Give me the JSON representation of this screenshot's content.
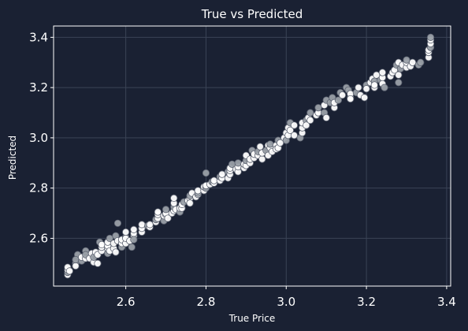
{
  "chart_data": {
    "type": "scatter",
    "title": "True vs Predicted",
    "xlabel": "True Price",
    "ylabel": "Predicted",
    "xlim": [
      2.42,
      3.41
    ],
    "ylim": [
      2.41,
      3.445
    ],
    "xticks": [
      2.6,
      2.8,
      3.0,
      3.2,
      3.4
    ],
    "yticks": [
      2.6,
      2.8,
      3.0,
      3.2,
      3.4
    ],
    "xtick_labels": [
      "2.6",
      "2.8",
      "3.0",
      "3.2",
      "3.4"
    ],
    "ytick_labels": [
      "2.6",
      "2.8",
      "3.0",
      "3.2",
      "3.4"
    ],
    "grid": true,
    "legend": false,
    "colors": {
      "background": "#1a2133",
      "axes_face": "#1a2133",
      "axes_edge": "#ffffff",
      "grid": "#3a4356",
      "point_fill": "#ffffff",
      "point_fill_faint": "#9aa0a8",
      "point_edge": "#5c6270"
    },
    "points": [
      [
        2.455,
        2.455
      ],
      [
        2.455,
        2.465
      ],
      [
        2.455,
        2.475
      ],
      [
        2.455,
        2.485
      ],
      [
        2.46,
        2.47
      ],
      [
        2.475,
        2.5
      ],
      [
        2.475,
        2.49
      ],
      [
        2.48,
        2.535
      ],
      [
        2.475,
        2.515
      ],
      [
        2.49,
        2.51
      ],
      [
        2.49,
        2.525
      ],
      [
        2.5,
        2.52
      ],
      [
        2.5,
        2.55
      ],
      [
        2.5,
        2.535
      ],
      [
        2.51,
        2.52
      ],
      [
        2.515,
        2.54
      ],
      [
        2.52,
        2.505
      ],
      [
        2.52,
        2.525
      ],
      [
        2.525,
        2.545
      ],
      [
        2.53,
        2.5
      ],
      [
        2.53,
        2.535
      ],
      [
        2.535,
        2.585
      ],
      [
        2.54,
        2.55
      ],
      [
        2.54,
        2.565
      ],
      [
        2.54,
        2.575
      ],
      [
        2.555,
        2.54
      ],
      [
        2.555,
        2.56
      ],
      [
        2.555,
        2.57
      ],
      [
        2.555,
        2.585
      ],
      [
        2.56,
        2.6
      ],
      [
        2.56,
        2.55
      ],
      [
        2.57,
        2.56
      ],
      [
        2.57,
        2.58
      ],
      [
        2.575,
        2.61
      ],
      [
        2.575,
        2.545
      ],
      [
        2.58,
        2.59
      ],
      [
        2.58,
        2.66
      ],
      [
        2.59,
        2.565
      ],
      [
        2.59,
        2.58
      ],
      [
        2.59,
        2.595
      ],
      [
        2.6,
        2.58
      ],
      [
        2.6,
        2.605
      ],
      [
        2.6,
        2.6
      ],
      [
        2.6,
        2.625
      ],
      [
        2.61,
        2.59
      ],
      [
        2.615,
        2.565
      ],
      [
        2.62,
        2.61
      ],
      [
        2.62,
        2.62
      ],
      [
        2.62,
        2.635
      ],
      [
        2.62,
        2.595
      ],
      [
        2.64,
        2.625
      ],
      [
        2.64,
        2.64
      ],
      [
        2.64,
        2.655
      ],
      [
        2.655,
        2.65
      ],
      [
        2.66,
        2.645
      ],
      [
        2.66,
        2.655
      ],
      [
        2.675,
        2.665
      ],
      [
        2.675,
        2.675
      ],
      [
        2.68,
        2.68
      ],
      [
        2.68,
        2.695
      ],
      [
        2.68,
        2.705
      ],
      [
        2.695,
        2.67
      ],
      [
        2.695,
        2.69
      ],
      [
        2.7,
        2.695
      ],
      [
        2.7,
        2.7
      ],
      [
        2.7,
        2.715
      ],
      [
        2.705,
        2.68
      ],
      [
        2.715,
        2.7
      ],
      [
        2.72,
        2.71
      ],
      [
        2.72,
        2.725
      ],
      [
        2.72,
        2.74
      ],
      [
        2.72,
        2.76
      ],
      [
        2.725,
        2.715
      ],
      [
        2.735,
        2.705
      ],
      [
        2.735,
        2.72
      ],
      [
        2.74,
        2.72
      ],
      [
        2.74,
        2.735
      ],
      [
        2.745,
        2.745
      ],
      [
        2.755,
        2.75
      ],
      [
        2.76,
        2.76
      ],
      [
        2.76,
        2.74
      ],
      [
        2.76,
        2.77
      ],
      [
        2.765,
        2.78
      ],
      [
        2.775,
        2.765
      ],
      [
        2.78,
        2.775
      ],
      [
        2.78,
        2.78
      ],
      [
        2.78,
        2.79
      ],
      [
        2.795,
        2.79
      ],
      [
        2.795,
        2.805
      ],
      [
        2.8,
        2.8
      ],
      [
        2.8,
        2.81
      ],
      [
        2.8,
        2.86
      ],
      [
        2.81,
        2.815
      ],
      [
        2.815,
        2.825
      ],
      [
        2.82,
        2.82
      ],
      [
        2.82,
        2.83
      ],
      [
        2.835,
        2.83
      ],
      [
        2.835,
        2.845
      ],
      [
        2.84,
        2.84
      ],
      [
        2.84,
        2.855
      ],
      [
        2.855,
        2.84
      ],
      [
        2.855,
        2.865
      ],
      [
        2.86,
        2.855
      ],
      [
        2.86,
        2.87
      ],
      [
        2.86,
        2.88
      ],
      [
        2.865,
        2.895
      ],
      [
        2.875,
        2.875
      ],
      [
        2.88,
        2.865
      ],
      [
        2.88,
        2.885
      ],
      [
        2.88,
        2.9
      ],
      [
        2.895,
        2.88
      ],
      [
        2.895,
        2.895
      ],
      [
        2.9,
        2.89
      ],
      [
        2.9,
        2.91
      ],
      [
        2.9,
        2.93
      ],
      [
        2.91,
        2.9
      ],
      [
        2.91,
        2.915
      ],
      [
        2.915,
        2.95
      ],
      [
        2.92,
        2.92
      ],
      [
        2.92,
        2.935
      ],
      [
        2.93,
        2.93
      ],
      [
        2.93,
        2.945
      ],
      [
        2.935,
        2.965
      ],
      [
        2.94,
        2.915
      ],
      [
        2.94,
        2.94
      ],
      [
        2.95,
        2.95
      ],
      [
        2.955,
        2.97
      ],
      [
        2.955,
        2.93
      ],
      [
        2.96,
        2.96
      ],
      [
        2.96,
        2.975
      ],
      [
        2.965,
        2.945
      ],
      [
        2.975,
        2.97
      ],
      [
        2.975,
        2.955
      ],
      [
        2.98,
        2.99
      ],
      [
        2.98,
        2.96
      ],
      [
        2.985,
        2.98
      ],
      [
        2.995,
        3.0
      ],
      [
        3.0,
        2.99
      ],
      [
        3.0,
        3.02
      ],
      [
        3.005,
        3.01
      ],
      [
        3.005,
        3.04
      ],
      [
        3.01,
        3.06
      ],
      [
        3.01,
        3.03
      ],
      [
        3.02,
        3.01
      ],
      [
        3.02,
        3.05
      ],
      [
        3.035,
        3.0
      ],
      [
        3.04,
        3.02
      ],
      [
        3.04,
        3.04
      ],
      [
        3.04,
        3.06
      ],
      [
        3.05,
        3.07
      ],
      [
        3.05,
        3.05
      ],
      [
        3.055,
        3.08
      ],
      [
        3.06,
        3.07
      ],
      [
        3.06,
        3.1
      ],
      [
        3.075,
        3.09
      ],
      [
        3.08,
        3.1
      ],
      [
        3.08,
        3.12
      ],
      [
        3.095,
        3.1
      ],
      [
        3.095,
        3.13
      ],
      [
        3.1,
        3.15
      ],
      [
        3.1,
        3.08
      ],
      [
        3.11,
        3.14
      ],
      [
        3.115,
        3.16
      ],
      [
        3.12,
        3.12
      ],
      [
        3.12,
        3.14
      ],
      [
        3.13,
        3.15
      ],
      [
        3.135,
        3.18
      ],
      [
        3.14,
        3.17
      ],
      [
        3.15,
        3.2
      ],
      [
        3.155,
        3.19
      ],
      [
        3.16,
        3.16
      ],
      [
        3.16,
        3.175
      ],
      [
        3.16,
        3.155
      ],
      [
        3.175,
        3.18
      ],
      [
        3.18,
        3.2
      ],
      [
        3.185,
        3.17
      ],
      [
        3.195,
        3.16
      ],
      [
        3.2,
        3.21
      ],
      [
        3.2,
        3.195
      ],
      [
        3.21,
        3.22
      ],
      [
        3.215,
        3.235
      ],
      [
        3.22,
        3.225
      ],
      [
        3.22,
        3.2
      ],
      [
        3.22,
        3.21
      ],
      [
        3.225,
        3.25
      ],
      [
        3.235,
        3.23
      ],
      [
        3.24,
        3.24
      ],
      [
        3.24,
        3.26
      ],
      [
        3.24,
        3.215
      ],
      [
        3.245,
        3.2
      ],
      [
        3.26,
        3.245
      ],
      [
        3.265,
        3.26
      ],
      [
        3.27,
        3.27
      ],
      [
        3.275,
        3.29
      ],
      [
        3.28,
        3.3
      ],
      [
        3.28,
        3.25
      ],
      [
        3.28,
        3.22
      ],
      [
        3.285,
        3.275
      ],
      [
        3.29,
        3.29
      ],
      [
        3.3,
        3.28
      ],
      [
        3.3,
        3.3
      ],
      [
        3.3,
        3.31
      ],
      [
        3.31,
        3.285
      ],
      [
        3.315,
        3.3
      ],
      [
        3.33,
        3.29
      ],
      [
        3.335,
        3.3
      ],
      [
        3.355,
        3.32
      ],
      [
        3.355,
        3.34
      ],
      [
        3.355,
        3.35
      ],
      [
        3.36,
        3.36
      ],
      [
        3.36,
        3.375
      ],
      [
        3.36,
        3.39
      ],
      [
        3.36,
        3.4
      ]
    ]
  }
}
